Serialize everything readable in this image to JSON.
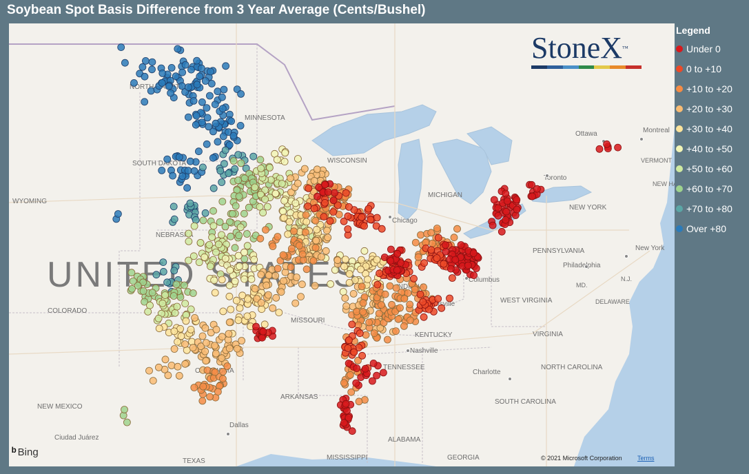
{
  "title": "Soybean Spot Basis Difference from 3 Year Average (Cents/Bushel)",
  "legend": {
    "title": "Legend",
    "items": [
      {
        "label": "Under 0",
        "color": "#d7191c"
      },
      {
        "label": "0 to +10",
        "color": "#ec4a28"
      },
      {
        "label": "+10 to +20",
        "color": "#f58c45"
      },
      {
        "label": "+20 to +30",
        "color": "#f9bc74"
      },
      {
        "label": "+30 to +40",
        "color": "#fde49c"
      },
      {
        "label": "+40 to +50",
        "color": "#f2f5b6"
      },
      {
        "label": "+50 to +60",
        "color": "#cfeaa1"
      },
      {
        "label": "+60 to +70",
        "color": "#9fd38e"
      },
      {
        "label": "+70 to +80",
        "color": "#5ba6a6"
      },
      {
        "label": "Over +80",
        "color": "#2b7bba"
      }
    ]
  },
  "logo": {
    "text": "StoneX",
    "tm": "™",
    "bar_colors": [
      "#1c3a66",
      "#2e5f9b",
      "#4a90c8",
      "#2f8a4a",
      "#e3c94a",
      "#e88a2a",
      "#c6302b"
    ]
  },
  "map": {
    "provider": "Bing",
    "copyright": "© 2021 Microsoft Corporation",
    "terms": "Terms",
    "country_label": "UNITED STATES",
    "place_labels": [
      "NORTH DAKOTA",
      "MINNESOTA",
      "SOUTH DAKOTA",
      "WYOMING",
      "NEBRASKA",
      "COLORADO",
      "WISCONSIN",
      "MICHIGAN",
      "Chicago",
      "INDIANA",
      "MISSOURI",
      "Louisville",
      "KENTUCKY",
      "Nashville",
      "TENNESSEE",
      "OKLAHOMA",
      "ARKANSAS",
      "NEW MEXICO",
      "Dallas",
      "TEXAS",
      "MISSISSIPPI",
      "ALABAMA",
      "GEORGIA",
      "Ciudad Juárez",
      "Columbus",
      "WEST VIRGINIA",
      "VIRGINIA",
      "NORTH CAROLINA",
      "SOUTH CAROLINA",
      "Charlotte",
      "PENNSYLVANIA",
      "Philadelphia",
      "NEW YORK",
      "New York",
      "Ottawa",
      "Montreal",
      "Toronto",
      "VERMONT",
      "NEW HAMPSHIRE",
      "DELAWARE",
      "MD.",
      "N.J."
    ],
    "city_markers": [
      "Chicago",
      "Louisville",
      "Nashville",
      "Dallas",
      "Charlotte",
      "Columbus",
      "Philadelphia",
      "New York",
      "Montreal",
      "Ottawa",
      "Toronto"
    ]
  }
}
